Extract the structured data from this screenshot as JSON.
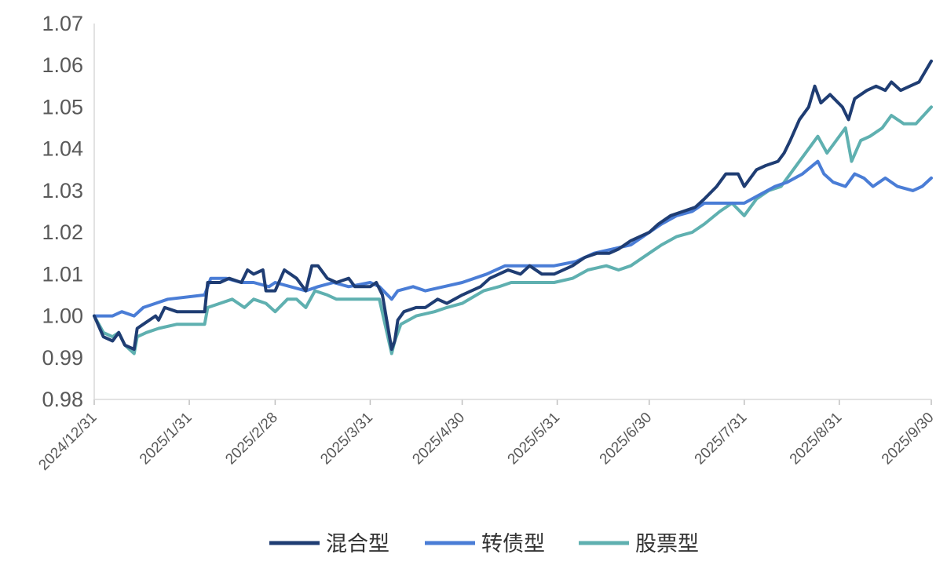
{
  "chart_data": {
    "type": "line",
    "title": "",
    "xlabel": "",
    "ylabel": "",
    "ylim": [
      0.98,
      1.07
    ],
    "y_ticks": [
      "0.98",
      "0.99",
      "1.00",
      "1.01",
      "1.02",
      "1.03",
      "1.04",
      "1.05",
      "1.06",
      "1.07"
    ],
    "x_ticks": [
      "2024/12/31",
      "2025/1/31",
      "2025/2/28",
      "2025/3/31",
      "2025/4/30",
      "2025/5/31",
      "2025/6/30",
      "2025/7/31",
      "2025/8/31",
      "2025/9/30"
    ],
    "grid": false,
    "legend_position": "bottom",
    "series": [
      {
        "name": "混合型",
        "color": "#1f3d73",
        "points": [
          [
            "2024-12-31",
            1.0
          ],
          [
            "2025-01-03",
            0.995
          ],
          [
            "2025-01-06",
            0.994
          ],
          [
            "2025-01-08",
            0.996
          ],
          [
            "2025-01-10",
            0.993
          ],
          [
            "2025-01-13",
            0.992
          ],
          [
            "2025-01-14",
            0.997
          ],
          [
            "2025-01-16",
            0.998
          ],
          [
            "2025-01-20",
            1.0
          ],
          [
            "2025-01-21",
            0.999
          ],
          [
            "2025-01-23",
            1.002
          ],
          [
            "2025-01-27",
            1.001
          ],
          [
            "2025-02-05",
            1.001
          ],
          [
            "2025-02-06",
            1.008
          ],
          [
            "2025-02-10",
            1.008
          ],
          [
            "2025-02-13",
            1.009
          ],
          [
            "2025-02-17",
            1.008
          ],
          [
            "2025-02-19",
            1.011
          ],
          [
            "2025-02-21",
            1.01
          ],
          [
            "2025-02-24",
            1.011
          ],
          [
            "2025-02-25",
            1.006
          ],
          [
            "2025-02-28",
            1.006
          ],
          [
            "2025-03-03",
            1.011
          ],
          [
            "2025-03-05",
            1.01
          ],
          [
            "2025-03-07",
            1.009
          ],
          [
            "2025-03-10",
            1.006
          ],
          [
            "2025-03-12",
            1.012
          ],
          [
            "2025-03-14",
            1.012
          ],
          [
            "2025-03-17",
            1.009
          ],
          [
            "2025-03-20",
            1.008
          ],
          [
            "2025-03-24",
            1.009
          ],
          [
            "2025-03-26",
            1.007
          ],
          [
            "2025-03-31",
            1.007
          ],
          [
            "2025-04-02",
            1.008
          ],
          [
            "2025-04-04",
            1.005
          ],
          [
            "2025-04-07",
            0.992
          ],
          [
            "2025-04-08",
            0.994
          ],
          [
            "2025-04-09",
            0.999
          ],
          [
            "2025-04-11",
            1.001
          ],
          [
            "2025-04-15",
            1.002
          ],
          [
            "2025-04-18",
            1.002
          ],
          [
            "2025-04-22",
            1.004
          ],
          [
            "2025-04-25",
            1.003
          ],
          [
            "2025-04-30",
            1.005
          ],
          [
            "2025-05-06",
            1.007
          ],
          [
            "2025-05-09",
            1.009
          ],
          [
            "2025-05-12",
            1.01
          ],
          [
            "2025-05-15",
            1.011
          ],
          [
            "2025-05-19",
            1.01
          ],
          [
            "2025-05-22",
            1.012
          ],
          [
            "2025-05-26",
            1.01
          ],
          [
            "2025-05-30",
            1.01
          ],
          [
            "2025-06-05",
            1.012
          ],
          [
            "2025-06-09",
            1.014
          ],
          [
            "2025-06-13",
            1.015
          ],
          [
            "2025-06-17",
            1.015
          ],
          [
            "2025-06-20",
            1.016
          ],
          [
            "2025-06-24",
            1.018
          ],
          [
            "2025-06-30",
            1.02
          ],
          [
            "2025-07-03",
            1.022
          ],
          [
            "2025-07-07",
            1.024
          ],
          [
            "2025-07-11",
            1.025
          ],
          [
            "2025-07-15",
            1.026
          ],
          [
            "2025-07-18",
            1.028
          ],
          [
            "2025-07-22",
            1.031
          ],
          [
            "2025-07-25",
            1.034
          ],
          [
            "2025-07-29",
            1.034
          ],
          [
            "2025-07-31",
            1.031
          ],
          [
            "2025-08-04",
            1.035
          ],
          [
            "2025-08-07",
            1.036
          ],
          [
            "2025-08-11",
            1.037
          ],
          [
            "2025-08-13",
            1.039
          ],
          [
            "2025-08-15",
            1.042
          ],
          [
            "2025-08-18",
            1.047
          ],
          [
            "2025-08-21",
            1.05
          ],
          [
            "2025-08-23",
            1.055
          ],
          [
            "2025-08-25",
            1.051
          ],
          [
            "2025-08-28",
            1.053
          ],
          [
            "2025-09-01",
            1.05
          ],
          [
            "2025-09-03",
            1.047
          ],
          [
            "2025-09-05",
            1.052
          ],
          [
            "2025-09-09",
            1.054
          ],
          [
            "2025-09-12",
            1.055
          ],
          [
            "2025-09-15",
            1.054
          ],
          [
            "2025-09-17",
            1.056
          ],
          [
            "2025-09-20",
            1.054
          ],
          [
            "2025-09-23",
            1.055
          ],
          [
            "2025-09-26",
            1.056
          ],
          [
            "2025-09-30",
            1.061
          ]
        ]
      },
      {
        "name": "转债型",
        "color": "#4a7dd6",
        "points": [
          [
            "2024-12-31",
            1.0
          ],
          [
            "2025-01-06",
            1.0
          ],
          [
            "2025-01-09",
            1.001
          ],
          [
            "2025-01-13",
            1.0
          ],
          [
            "2025-01-16",
            1.002
          ],
          [
            "2025-01-20",
            1.003
          ],
          [
            "2025-01-24",
            1.004
          ],
          [
            "2025-02-05",
            1.005
          ],
          [
            "2025-02-07",
            1.009
          ],
          [
            "2025-02-12",
            1.009
          ],
          [
            "2025-02-17",
            1.008
          ],
          [
            "2025-02-21",
            1.008
          ],
          [
            "2025-02-26",
            1.007
          ],
          [
            "2025-02-28",
            1.008
          ],
          [
            "2025-03-05",
            1.007
          ],
          [
            "2025-03-10",
            1.006
          ],
          [
            "2025-03-14",
            1.007
          ],
          [
            "2025-03-19",
            1.008
          ],
          [
            "2025-03-24",
            1.007
          ],
          [
            "2025-03-31",
            1.008
          ],
          [
            "2025-04-03",
            1.007
          ],
          [
            "2025-04-07",
            1.004
          ],
          [
            "2025-04-09",
            1.006
          ],
          [
            "2025-04-14",
            1.007
          ],
          [
            "2025-04-18",
            1.006
          ],
          [
            "2025-04-24",
            1.007
          ],
          [
            "2025-04-30",
            1.008
          ],
          [
            "2025-05-08",
            1.01
          ],
          [
            "2025-05-14",
            1.012
          ],
          [
            "2025-05-20",
            1.012
          ],
          [
            "2025-05-26",
            1.012
          ],
          [
            "2025-05-30",
            1.012
          ],
          [
            "2025-06-06",
            1.013
          ],
          [
            "2025-06-12",
            1.015
          ],
          [
            "2025-06-18",
            1.016
          ],
          [
            "2025-06-24",
            1.017
          ],
          [
            "2025-06-30",
            1.02
          ],
          [
            "2025-07-04",
            1.022
          ],
          [
            "2025-07-09",
            1.024
          ],
          [
            "2025-07-14",
            1.025
          ],
          [
            "2025-07-18",
            1.027
          ],
          [
            "2025-07-24",
            1.027
          ],
          [
            "2025-07-31",
            1.027
          ],
          [
            "2025-08-05",
            1.029
          ],
          [
            "2025-08-10",
            1.031
          ],
          [
            "2025-08-14",
            1.032
          ],
          [
            "2025-08-19",
            1.034
          ],
          [
            "2025-08-24",
            1.037
          ],
          [
            "2025-08-26",
            1.034
          ],
          [
            "2025-08-29",
            1.032
          ],
          [
            "2025-09-02",
            1.031
          ],
          [
            "2025-09-05",
            1.034
          ],
          [
            "2025-09-08",
            1.033
          ],
          [
            "2025-09-11",
            1.031
          ],
          [
            "2025-09-15",
            1.033
          ],
          [
            "2025-09-19",
            1.031
          ],
          [
            "2025-09-24",
            1.03
          ],
          [
            "2025-09-27",
            1.031
          ],
          [
            "2025-09-30",
            1.033
          ]
        ]
      },
      {
        "name": "股票型",
        "color": "#5fb0b0",
        "points": [
          [
            "2024-12-31",
            1.0
          ],
          [
            "2025-01-03",
            0.996
          ],
          [
            "2025-01-06",
            0.995
          ],
          [
            "2025-01-08",
            0.996
          ],
          [
            "2025-01-10",
            0.993
          ],
          [
            "2025-01-13",
            0.991
          ],
          [
            "2025-01-14",
            0.995
          ],
          [
            "2025-01-17",
            0.996
          ],
          [
            "2025-01-21",
            0.997
          ],
          [
            "2025-01-27",
            0.998
          ],
          [
            "2025-02-05",
            0.998
          ],
          [
            "2025-02-06",
            1.002
          ],
          [
            "2025-02-10",
            1.003
          ],
          [
            "2025-02-14",
            1.004
          ],
          [
            "2025-02-18",
            1.002
          ],
          [
            "2025-02-21",
            1.004
          ],
          [
            "2025-02-25",
            1.003
          ],
          [
            "2025-02-28",
            1.001
          ],
          [
            "2025-03-04",
            1.004
          ],
          [
            "2025-03-07",
            1.004
          ],
          [
            "2025-03-10",
            1.002
          ],
          [
            "2025-03-13",
            1.006
          ],
          [
            "2025-03-17",
            1.005
          ],
          [
            "2025-03-20",
            1.004
          ],
          [
            "2025-03-25",
            1.004
          ],
          [
            "2025-03-31",
            1.004
          ],
          [
            "2025-04-03",
            1.004
          ],
          [
            "2025-04-07",
            0.991
          ],
          [
            "2025-04-08",
            0.994
          ],
          [
            "2025-04-10",
            0.998
          ],
          [
            "2025-04-15",
            1.0
          ],
          [
            "2025-04-21",
            1.001
          ],
          [
            "2025-04-25",
            1.002
          ],
          [
            "2025-04-30",
            1.003
          ],
          [
            "2025-05-07",
            1.006
          ],
          [
            "2025-05-12",
            1.007
          ],
          [
            "2025-05-16",
            1.008
          ],
          [
            "2025-05-20",
            1.008
          ],
          [
            "2025-05-26",
            1.008
          ],
          [
            "2025-05-30",
            1.008
          ],
          [
            "2025-06-05",
            1.009
          ],
          [
            "2025-06-10",
            1.011
          ],
          [
            "2025-06-16",
            1.012
          ],
          [
            "2025-06-20",
            1.011
          ],
          [
            "2025-06-24",
            1.012
          ],
          [
            "2025-06-30",
            1.015
          ],
          [
            "2025-07-04",
            1.017
          ],
          [
            "2025-07-09",
            1.019
          ],
          [
            "2025-07-14",
            1.02
          ],
          [
            "2025-07-18",
            1.022
          ],
          [
            "2025-07-23",
            1.025
          ],
          [
            "2025-07-27",
            1.027
          ],
          [
            "2025-07-31",
            1.024
          ],
          [
            "2025-08-04",
            1.028
          ],
          [
            "2025-08-08",
            1.03
          ],
          [
            "2025-08-12",
            1.031
          ],
          [
            "2025-08-15",
            1.034
          ],
          [
            "2025-08-18",
            1.037
          ],
          [
            "2025-08-21",
            1.04
          ],
          [
            "2025-08-24",
            1.043
          ],
          [
            "2025-08-27",
            1.039
          ],
          [
            "2025-08-30",
            1.042
          ],
          [
            "2025-09-02",
            1.045
          ],
          [
            "2025-09-04",
            1.037
          ],
          [
            "2025-09-07",
            1.042
          ],
          [
            "2025-09-10",
            1.043
          ],
          [
            "2025-09-14",
            1.045
          ],
          [
            "2025-09-17",
            1.048
          ],
          [
            "2025-09-21",
            1.046
          ],
          [
            "2025-09-25",
            1.046
          ],
          [
            "2025-09-30",
            1.05
          ]
        ]
      }
    ]
  }
}
